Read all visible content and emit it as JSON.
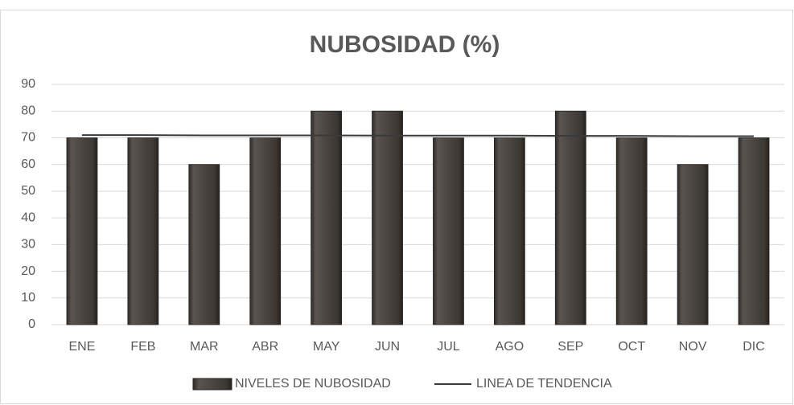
{
  "chart_data": {
    "type": "bar",
    "title": "NUBOSIDAD (%)",
    "categories": [
      "ENE",
      "FEB",
      "MAR",
      "ABR",
      "MAY",
      "JUN",
      "JUL",
      "AGO",
      "SEP",
      "OCT",
      "NOV",
      "DIC"
    ],
    "series": [
      {
        "name": "NIVELES DE NUBOSIDAD",
        "type": "bar",
        "color": "#4a4541",
        "values": [
          70,
          70,
          60,
          70,
          80,
          80,
          70,
          70,
          80,
          70,
          60,
          70
        ]
      },
      {
        "name": "LINEA DE TENDENCIA",
        "type": "line",
        "color": "#3a3a3a",
        "values": [
          71.0,
          71.0,
          70.9,
          70.9,
          70.9,
          70.8,
          70.8,
          70.8,
          70.7,
          70.7,
          70.6,
          70.6
        ]
      }
    ],
    "ylim": [
      0,
      90
    ],
    "yticks": [
      0,
      10,
      20,
      30,
      40,
      50,
      60,
      70,
      80,
      90
    ],
    "grid": true,
    "legend": "bottom"
  }
}
